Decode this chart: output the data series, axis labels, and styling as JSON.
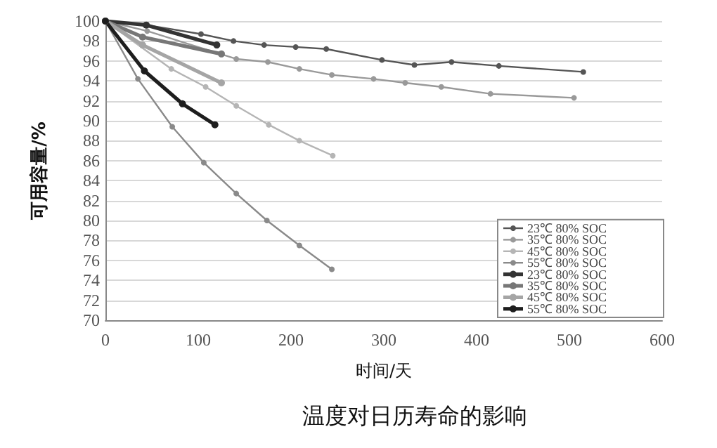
{
  "chart_data": {
    "type": "line",
    "title": "温度对日历寿命的影响",
    "xlabel": "时间/天",
    "ylabel": "可用容量/%",
    "xlim": [
      0,
      600
    ],
    "xticks": [
      0,
      100,
      200,
      300,
      400,
      500,
      600
    ],
    "ylim": [
      70,
      100
    ],
    "yticks": [
      70,
      72,
      74,
      76,
      78,
      80,
      82,
      84,
      86,
      88,
      90,
      92,
      94,
      96,
      98,
      100
    ],
    "grid": "y",
    "legend": "bottom right",
    "marker": "circle",
    "series": [
      {
        "name": "23℃ 80% SOC",
        "color": "#555555",
        "x": [
          0,
          44,
          103,
          138,
          171,
          205,
          238,
          298,
          333,
          373,
          424,
          515
        ],
        "values": [
          100,
          99.6,
          98.7,
          98,
          97.6,
          97.4,
          97.2,
          96.1,
          95.6,
          95.9,
          95.5,
          94.9
        ]
      },
      {
        "name": "35℃ 80% SOC",
        "color": "#999999",
        "x": [
          0,
          45,
          141,
          175,
          209,
          244,
          289,
          323,
          362,
          415,
          505
        ],
        "values": [
          100,
          99,
          96.2,
          95.9,
          95.2,
          94.6,
          94.2,
          93.8,
          93.4,
          92.7,
          92.3
        ]
      },
      {
        "name": "45℃ 80% SOC",
        "color": "#b5b5b5",
        "x": [
          0,
          71,
          108,
          141,
          176,
          209,
          245
        ],
        "values": [
          100,
          95.2,
          93.4,
          91.5,
          89.6,
          88,
          86.5
        ]
      },
      {
        "name": "55℃ 80% SOC",
        "color": "#8a8a8a",
        "x": [
          0,
          35,
          72,
          106,
          141,
          174,
          209,
          244
        ],
        "values": [
          100,
          94.2,
          89.4,
          85.8,
          82.7,
          80,
          77.5,
          75.1
        ]
      },
      {
        "name": "23℃ 80% SOC",
        "color": "#333333",
        "x": [
          0,
          44,
          120
        ],
        "values": [
          100,
          99.6,
          97.6
        ]
      },
      {
        "name": "35℃ 80% SOC",
        "color": "#777777",
        "x": [
          0,
          40,
          125
        ],
        "values": [
          100,
          98.4,
          96.7
        ]
      },
      {
        "name": "45℃ 80% SOC",
        "color": "#a5a5a5",
        "x": [
          0,
          40,
          125
        ],
        "values": [
          100,
          97.6,
          93.8
        ]
      },
      {
        "name": "55℃ 80% SOC",
        "color": "#1e1e1e",
        "x": [
          0,
          42,
          83,
          118
        ],
        "values": [
          100,
          95,
          91.7,
          89.6
        ]
      }
    ]
  }
}
